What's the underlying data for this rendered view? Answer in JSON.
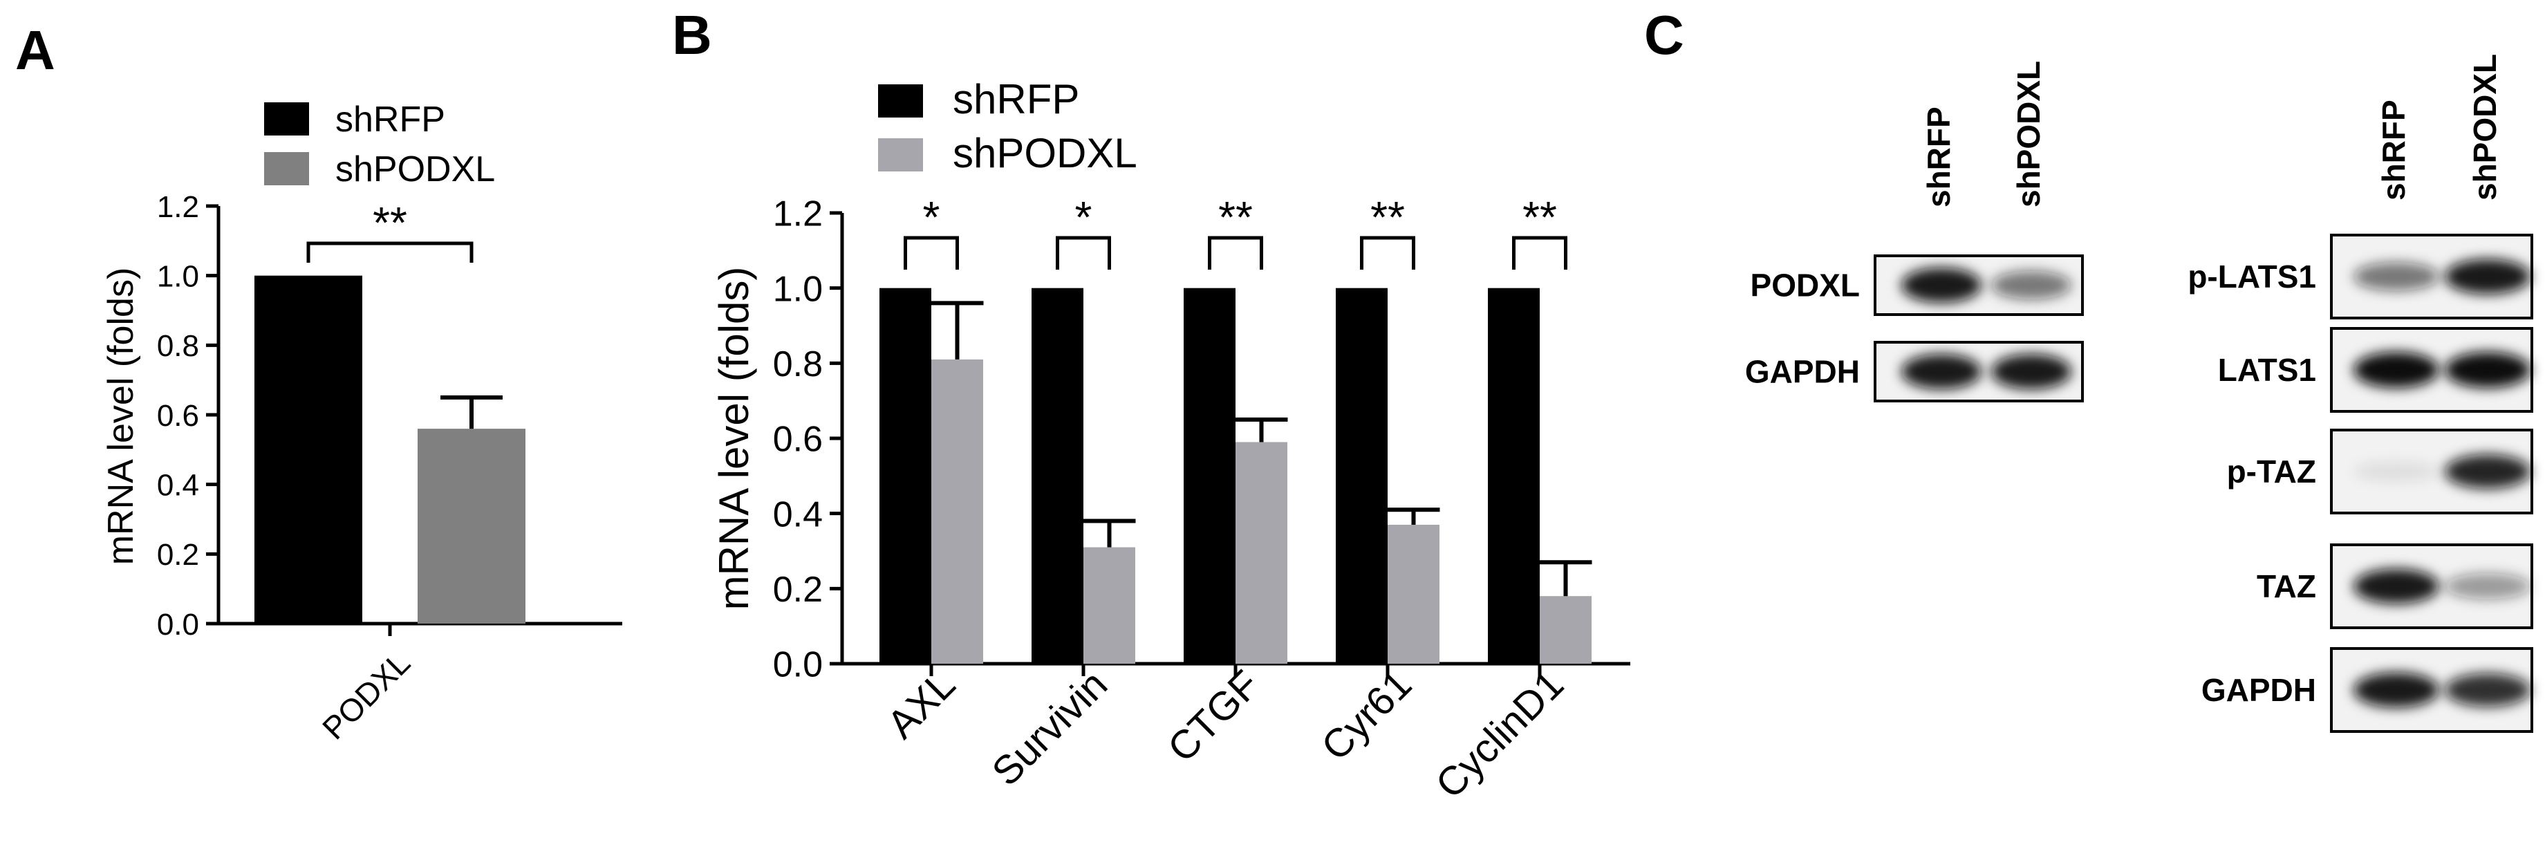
{
  "panel_labels": {
    "a": "A",
    "b": "B",
    "c": "C"
  },
  "colors": {
    "shRFP": "#000000",
    "shPODXL_a": "#808080",
    "shPODXL_b": "#a7a6ac",
    "axis": "#000000",
    "blot_bg": "#f2f2f2",
    "band": "#111111"
  },
  "chart_data": [
    {
      "panel": "A",
      "type": "bar",
      "ylabel": "mRNA level (folds)",
      "xlabel": "",
      "ylim": [
        0,
        1.2
      ],
      "yticks": [
        "0.0",
        "0.2",
        "0.4",
        "0.6",
        "0.8",
        "1.0",
        "1.2"
      ],
      "categories": [
        "PODXL"
      ],
      "series": [
        {
          "name": "shRFP",
          "values": [
            1.0
          ],
          "errors": [
            0
          ]
        },
        {
          "name": "shPODXL",
          "values": [
            0.56
          ],
          "errors": [
            0.09
          ]
        }
      ],
      "significance": [
        "**"
      ],
      "legend": "top"
    },
    {
      "panel": "B",
      "type": "bar",
      "ylabel": "mRNA level (folds)",
      "xlabel": "",
      "ylim": [
        0,
        1.2
      ],
      "yticks": [
        "0.0",
        "0.2",
        "0.4",
        "0.6",
        "0.8",
        "1.0",
        "1.2"
      ],
      "categories": [
        "AXL",
        "Survivin",
        "CTGF",
        "Cyr61",
        "CyclinD1"
      ],
      "series": [
        {
          "name": "shRFP",
          "values": [
            1.0,
            1.0,
            1.0,
            1.0,
            1.0
          ],
          "errors": [
            0,
            0,
            0,
            0,
            0
          ]
        },
        {
          "name": "shPODXL",
          "values": [
            0.81,
            0.31,
            0.59,
            0.37,
            0.18
          ],
          "errors": [
            0.15,
            0.07,
            0.06,
            0.04,
            0.09
          ]
        }
      ],
      "significance": [
        "*",
        "*",
        "**",
        "**",
        "**"
      ],
      "legend": "top"
    }
  ],
  "blots": {
    "group1": {
      "lane_labels": [
        "shRFP",
        "shPODXL"
      ],
      "rows": [
        {
          "label": "PODXL",
          "bands": [
            0.95,
            0.55
          ]
        },
        {
          "label": "GAPDH",
          "bands": [
            0.95,
            0.95
          ]
        }
      ]
    },
    "group2": {
      "lane_labels": [
        "shRFP",
        "shPODXL"
      ],
      "rows": [
        {
          "label": "p-LATS1",
          "bands": [
            0.55,
            0.95
          ]
        },
        {
          "label": "LATS1",
          "bands": [
            1.0,
            1.0
          ]
        },
        {
          "label": "p-TAZ",
          "bands": [
            0.08,
            0.9
          ]
        },
        {
          "label": "TAZ",
          "bands": [
            0.95,
            0.4
          ]
        },
        {
          "label": "GAPDH",
          "bands": [
            0.95,
            0.85
          ]
        }
      ]
    }
  }
}
